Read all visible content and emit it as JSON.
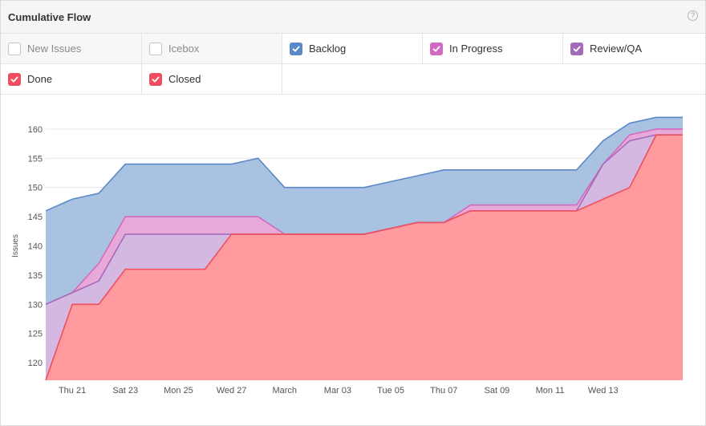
{
  "widget": {
    "title": "Cumulative Flow",
    "help_icon": "?"
  },
  "legend": [
    {
      "label": "New Issues",
      "checked": false,
      "color": "#c4c4c4"
    },
    {
      "label": "Icebox",
      "checked": false,
      "color": "#c4c4c4"
    },
    {
      "label": "Backlog",
      "checked": true,
      "color": "#5b89c8"
    },
    {
      "label": "In Progress",
      "checked": true,
      "color": "#d26ac0"
    },
    {
      "label": "Review/QA",
      "checked": true,
      "color": "#a46aba"
    },
    {
      "label": "Done",
      "checked": true,
      "color": "#ef4f5c"
    },
    {
      "label": "Closed",
      "checked": true,
      "color": "#ef4f5c"
    }
  ],
  "chart_data": {
    "type": "area",
    "ylabel": "Issues",
    "xlabel": "",
    "ylim": [
      117,
      163
    ],
    "yticks": [
      120,
      125,
      130,
      135,
      140,
      145,
      150,
      155,
      160
    ],
    "xticks": [
      "Thu 21",
      "Sat 23",
      "Mon 25",
      "Wed 27",
      "March",
      "Mar 03",
      "Tue 05",
      "Thu 07",
      "Sat 09",
      "Mon 11",
      "Wed 13"
    ],
    "grid": true,
    "series": [
      {
        "name": "Backlog",
        "color": "#5b89c8",
        "fill": "#a9c2e2",
        "values": [
          146,
          148,
          149,
          154,
          154,
          154,
          154,
          154,
          155,
          150,
          150,
          150,
          150,
          151,
          152,
          153,
          153,
          153,
          153,
          153,
          153,
          158,
          161,
          162,
          162
        ]
      },
      {
        "name": "In Progress",
        "color": "#d26ac0",
        "fill": "#e6a9d8",
        "values": [
          130,
          132,
          137,
          145,
          145,
          145,
          145,
          145,
          145,
          142,
          142,
          142,
          142,
          143,
          144,
          144,
          147,
          147,
          147,
          147,
          147,
          154,
          159,
          160,
          160
        ]
      },
      {
        "name": "Review/QA",
        "color": "#a46aba",
        "fill": "#d5b8e2",
        "values": [
          130,
          132,
          134,
          142,
          142,
          142,
          142,
          142,
          142,
          142,
          142,
          142,
          142,
          143,
          144,
          144,
          146,
          146,
          146,
          146,
          146,
          154,
          158,
          159,
          159
        ]
      },
      {
        "name": "Done",
        "color": "#ef4f5c",
        "fill": "#ff9a9e",
        "values": [
          117,
          130,
          130,
          136,
          136,
          136,
          136,
          142,
          142,
          142,
          142,
          142,
          142,
          143,
          144,
          144,
          146,
          146,
          146,
          146,
          146,
          148,
          150,
          159,
          159
        ]
      }
    ]
  }
}
